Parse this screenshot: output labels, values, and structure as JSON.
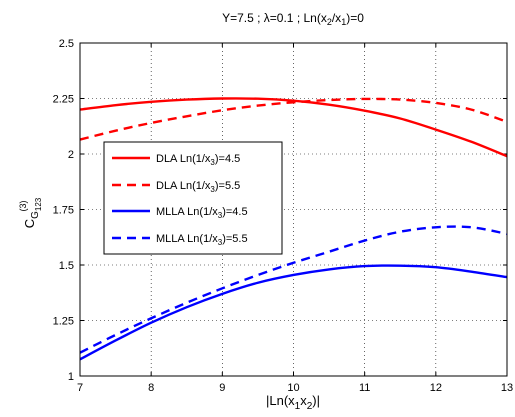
{
  "chart_data": {
    "type": "line",
    "title": {
      "main": "Y=7.5 ; λ=0.1 ; Ln(x",
      "s1": "2",
      "m1": "/x",
      "s2": "1",
      "end": ")=0"
    },
    "xlabel": {
      "pre": "|Ln(x",
      "s1": "1",
      "mid": "x",
      "s2": "2",
      "post": ")|"
    },
    "ylabel": {
      "main": "C",
      "sup": "(3)",
      "sub": "G",
      "subsub": "123"
    },
    "xlim": [
      7,
      13
    ],
    "ylim": [
      1,
      2.5
    ],
    "x_ticks": [
      "7",
      "8",
      "9",
      "10",
      "11",
      "12",
      "13"
    ],
    "y_ticks": [
      "1",
      "1.25",
      "1.5",
      "1.75",
      "2",
      "2.25",
      "2.5"
    ],
    "grid": true,
    "legend_position": "left-middle",
    "series": [
      {
        "legend": {
          "pre": "DLA Ln(1/x",
          "sub": "3",
          "post": ")=4.5"
        },
        "color": "#ff0000",
        "dash": "solid",
        "x": [
          7,
          7.5,
          8,
          8.5,
          9,
          9.5,
          10,
          10.5,
          11,
          11.5,
          12,
          12.5,
          13
        ],
        "y": [
          2.2,
          2.22,
          2.235,
          2.245,
          2.25,
          2.249,
          2.24,
          2.222,
          2.195,
          2.16,
          2.11,
          2.055,
          1.99
        ]
      },
      {
        "legend": {
          "pre": "DLA Ln(1/x",
          "sub": "3",
          "post": ")=5.5"
        },
        "color": "#ff0000",
        "dash": "dashed",
        "x": [
          7,
          7.5,
          8,
          8.5,
          9,
          9.5,
          10,
          10.5,
          11,
          11.5,
          12,
          12.5,
          13
        ],
        "y": [
          2.065,
          2.105,
          2.14,
          2.17,
          2.197,
          2.218,
          2.233,
          2.243,
          2.248,
          2.245,
          2.23,
          2.2,
          2.145
        ]
      },
      {
        "legend": {
          "pre": "MLLA Ln(1/x",
          "sub": "3",
          "post": ")=4.5"
        },
        "color": "#0000ff",
        "dash": "solid",
        "x": [
          7,
          7.5,
          8,
          8.5,
          9,
          9.5,
          10,
          10.5,
          11,
          11.5,
          12,
          12.5,
          13
        ],
        "y": [
          1.075,
          1.16,
          1.24,
          1.31,
          1.37,
          1.42,
          1.455,
          1.48,
          1.495,
          1.497,
          1.49,
          1.47,
          1.445
        ]
      },
      {
        "legend": {
          "pre": "MLLA Ln(1/x",
          "sub": "3",
          "post": ")=5.5"
        },
        "color": "#0000ff",
        "dash": "dashed",
        "x": [
          7,
          7.5,
          8,
          8.5,
          9,
          9.5,
          10,
          10.5,
          11,
          11.5,
          12,
          12.5,
          13
        ],
        "y": [
          1.105,
          1.185,
          1.26,
          1.33,
          1.395,
          1.455,
          1.51,
          1.56,
          1.61,
          1.65,
          1.67,
          1.67,
          1.64
        ]
      }
    ]
  }
}
